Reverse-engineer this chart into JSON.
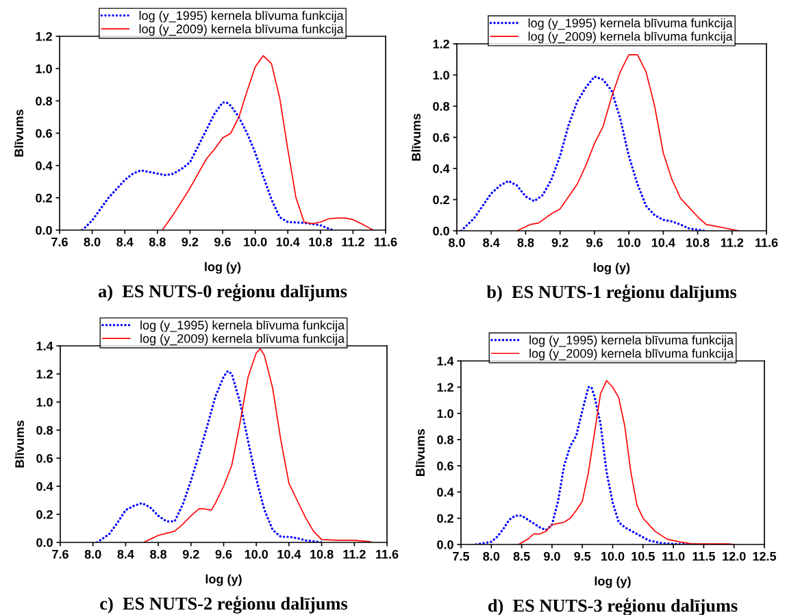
{
  "chart_data": [
    {
      "type": "line",
      "title": "a)  ES NUTS-0 reģionu dalījums",
      "xlabel": "log (y)",
      "ylabel": "Blīvums",
      "xlim": [
        7.6,
        11.6
      ],
      "xticks": [
        {
          "value": 7.6,
          "label": "7.6"
        },
        {
          "value": 8.0,
          "label": "8.0"
        },
        {
          "value": 8.4,
          "label": "8.4"
        },
        {
          "value": 8.8,
          "label": "8.8"
        },
        {
          "value": 9.2,
          "label": "9.2"
        },
        {
          "value": 9.6,
          "label": "9.6"
        },
        {
          "value": 10.0,
          "label": "10.0"
        },
        {
          "value": 10.4,
          "label": "10.4"
        },
        {
          "value": 10.8,
          "label": "10.8"
        },
        {
          "value": 11.2,
          "label": "11.2"
        },
        {
          "value": 11.6,
          "label": "11.6"
        }
      ],
      "ylim": [
        0,
        1.2
      ],
      "yticks": [
        {
          "value": 0,
          "label": "0.0"
        },
        {
          "value": 0.2,
          "label": "0.2"
        },
        {
          "value": 0.4,
          "label": "0.4"
        },
        {
          "value": 0.6,
          "label": "0.6"
        },
        {
          "value": 0.8,
          "label": "0.8"
        },
        {
          "value": 1.0,
          "label": "1.0"
        },
        {
          "value": 1.2,
          "label": "1.2"
        }
      ],
      "grid": false,
      "legend": "top",
      "marker": "none",
      "series": [
        {
          "name": "log (y_1995) kernela blīvuma funkcija",
          "color": "#0000ff",
          "line_style": "dotted",
          "x": [
            7.88,
            8.0,
            8.2,
            8.4,
            8.5,
            8.6,
            8.7,
            8.8,
            8.9,
            9.0,
            9.1,
            9.2,
            9.3,
            9.4,
            9.5,
            9.6,
            9.65,
            9.7,
            9.8,
            9.9,
            10.0,
            10.1,
            10.2,
            10.3,
            10.4,
            10.6,
            10.8,
            10.95
          ],
          "values": [
            0,
            0.06,
            0.2,
            0.31,
            0.35,
            0.37,
            0.36,
            0.35,
            0.34,
            0.35,
            0.38,
            0.42,
            0.52,
            0.62,
            0.72,
            0.79,
            0.79,
            0.77,
            0.7,
            0.6,
            0.48,
            0.33,
            0.19,
            0.08,
            0.05,
            0.045,
            0.03,
            0
          ]
        },
        {
          "name": "log (y_2009) kernela blīvuma funkcija",
          "color": "#ff0000",
          "line_style": "solid",
          "x": [
            8.86,
            9.0,
            9.2,
            9.4,
            9.5,
            9.6,
            9.7,
            9.8,
            9.9,
            10.0,
            10.1,
            10.2,
            10.3,
            10.4,
            10.5,
            10.6,
            10.7,
            10.8,
            10.9,
            11.0,
            11.1,
            11.2,
            11.3,
            11.45
          ],
          "values": [
            0,
            0.1,
            0.26,
            0.44,
            0.5,
            0.57,
            0.6,
            0.7,
            0.86,
            1.01,
            1.08,
            1.03,
            0.82,
            0.5,
            0.2,
            0.05,
            0.04,
            0.05,
            0.07,
            0.075,
            0.075,
            0.065,
            0.04,
            0
          ]
        }
      ]
    },
    {
      "type": "line",
      "title": "b)  ES NUTS-1 reģionu dalījums",
      "xlabel": "log (y)",
      "ylabel": "Blīvums",
      "xlim": [
        8.0,
        11.6
      ],
      "xticks": [
        {
          "value": 8.0,
          "label": "8.0"
        },
        {
          "value": 8.4,
          "label": "8.4"
        },
        {
          "value": 8.8,
          "label": "8.8"
        },
        {
          "value": 9.2,
          "label": "9.2"
        },
        {
          "value": 9.6,
          "label": "9.6"
        },
        {
          "value": 10.0,
          "label": "10.0"
        },
        {
          "value": 10.4,
          "label": "10.4"
        },
        {
          "value": 10.8,
          "label": "10.8"
        },
        {
          "value": 11.2,
          "label": "11.2"
        },
        {
          "value": 11.6,
          "label": "11.6"
        }
      ],
      "ylim": [
        0,
        1.2
      ],
      "yticks": [
        {
          "value": 0,
          "label": "0.0"
        },
        {
          "value": 0.2,
          "label": "0.2"
        },
        {
          "value": 0.4,
          "label": "0.4"
        },
        {
          "value": 0.6,
          "label": "0.6"
        },
        {
          "value": 0.8,
          "label": "0.8"
        },
        {
          "value": 1.0,
          "label": "1.0"
        },
        {
          "value": 1.2,
          "label": "1.2"
        }
      ],
      "grid": false,
      "legend": "top",
      "marker": "none",
      "series": [
        {
          "name": "log (y_1995) kernela blīvuma funkcija",
          "color": "#0000ff",
          "line_style": "dotted",
          "x": [
            8.05,
            8.2,
            8.4,
            8.5,
            8.6,
            8.7,
            8.8,
            8.9,
            9.0,
            9.1,
            9.2,
            9.3,
            9.4,
            9.5,
            9.6,
            9.7,
            9.8,
            9.9,
            10.0,
            10.1,
            10.2,
            10.3,
            10.4,
            10.5,
            10.6,
            10.7,
            10.88
          ],
          "values": [
            0,
            0.08,
            0.24,
            0.29,
            0.32,
            0.29,
            0.22,
            0.19,
            0.23,
            0.33,
            0.48,
            0.68,
            0.83,
            0.92,
            0.99,
            0.97,
            0.9,
            0.72,
            0.48,
            0.3,
            0.16,
            0.1,
            0.07,
            0.06,
            0.04,
            0.015,
            0
          ]
        },
        {
          "name": "log (y_2009) kernela blīvuma funkcija",
          "color": "#ff0000",
          "line_style": "solid",
          "x": [
            8.7,
            8.85,
            8.95,
            9.1,
            9.2,
            9.3,
            9.4,
            9.5,
            9.6,
            9.7,
            9.8,
            9.9,
            10.0,
            10.1,
            10.2,
            10.3,
            10.4,
            10.5,
            10.6,
            10.7,
            10.8,
            10.9,
            11.0,
            11.1,
            11.27
          ],
          "values": [
            0,
            0.04,
            0.05,
            0.11,
            0.14,
            0.22,
            0.3,
            0.42,
            0.56,
            0.67,
            0.86,
            1.02,
            1.13,
            1.13,
            1.02,
            0.8,
            0.5,
            0.33,
            0.21,
            0.15,
            0.09,
            0.04,
            0.03,
            0.02,
            0
          ]
        }
      ]
    },
    {
      "type": "line",
      "title": "c)  ES NUTS-2 reģionu dalījums",
      "xlabel": "log (y)",
      "ylabel": "Blīvums",
      "xlim": [
        7.6,
        11.6
      ],
      "xticks": [
        {
          "value": 7.6,
          "label": "7.6"
        },
        {
          "value": 8.0,
          "label": "8.0"
        },
        {
          "value": 8.4,
          "label": "8.4"
        },
        {
          "value": 8.8,
          "label": "8.8"
        },
        {
          "value": 9.2,
          "label": "9.2"
        },
        {
          "value": 9.6,
          "label": "9.6"
        },
        {
          "value": 10.0,
          "label": "10.0"
        },
        {
          "value": 10.4,
          "label": "10.4"
        },
        {
          "value": 10.8,
          "label": "10.8"
        },
        {
          "value": 11.2,
          "label": "11.2"
        },
        {
          "value": 11.6,
          "label": "11.6"
        }
      ],
      "ylim": [
        0,
        1.4
      ],
      "yticks": [
        {
          "value": 0,
          "label": "0.0"
        },
        {
          "value": 0.2,
          "label": "0.2"
        },
        {
          "value": 0.4,
          "label": "0.4"
        },
        {
          "value": 0.6,
          "label": "0.6"
        },
        {
          "value": 0.8,
          "label": "0.8"
        },
        {
          "value": 1.0,
          "label": "1.0"
        },
        {
          "value": 1.2,
          "label": "1.2"
        },
        {
          "value": 1.4,
          "label": "1.4"
        }
      ],
      "grid": false,
      "legend": "top",
      "marker": "none",
      "series": [
        {
          "name": "log (y_1995) kernela blīvuma funkcija",
          "color": "#0000ff",
          "line_style": "dotted",
          "x": [
            8.05,
            8.2,
            8.3,
            8.4,
            8.5,
            8.6,
            8.7,
            8.8,
            8.9,
            9.0,
            9.1,
            9.2,
            9.3,
            9.4,
            9.5,
            9.6,
            9.65,
            9.7,
            9.8,
            9.9,
            10.0,
            10.1,
            10.2,
            10.3,
            10.4,
            10.5,
            10.6,
            10.8
          ],
          "values": [
            0,
            0.06,
            0.14,
            0.23,
            0.26,
            0.28,
            0.25,
            0.19,
            0.15,
            0.15,
            0.27,
            0.44,
            0.63,
            0.83,
            1.04,
            1.18,
            1.22,
            1.2,
            1.0,
            0.72,
            0.45,
            0.23,
            0.09,
            0.04,
            0.04,
            0.03,
            0.015,
            0
          ]
        },
        {
          "name": "log (y_2009) kernela blīvuma funkcija",
          "color": "#ff0000",
          "line_style": "solid",
          "x": [
            8.62,
            8.8,
            9.0,
            9.1,
            9.2,
            9.3,
            9.35,
            9.45,
            9.5,
            9.6,
            9.7,
            9.8,
            9.9,
            10.0,
            10.05,
            10.1,
            10.2,
            10.3,
            10.4,
            10.5,
            10.6,
            10.7,
            10.8,
            11.0,
            11.2,
            11.4
          ],
          "values": [
            0,
            0.05,
            0.08,
            0.13,
            0.19,
            0.24,
            0.24,
            0.23,
            0.28,
            0.4,
            0.55,
            0.85,
            1.18,
            1.35,
            1.38,
            1.33,
            1.1,
            0.73,
            0.42,
            0.3,
            0.18,
            0.08,
            0.02,
            0.015,
            0.015,
            0.005
          ]
        }
      ]
    },
    {
      "type": "line",
      "title": "d)  ES NUTS-3 reģionu dalījums",
      "xlabel": "log (y)",
      "ylabel": "Blīvums",
      "xlim": [
        7.5,
        12.5
      ],
      "xticks": [
        {
          "value": 7.5,
          "label": "7.5"
        },
        {
          "value": 8.0,
          "label": "8.0"
        },
        {
          "value": 8.5,
          "label": "8.5"
        },
        {
          "value": 9.0,
          "label": "9.0"
        },
        {
          "value": 9.5,
          "label": "9.5"
        },
        {
          "value": 10.0,
          "label": "10.0"
        },
        {
          "value": 10.5,
          "label": "10.5"
        },
        {
          "value": 11.0,
          "label": "11.0"
        },
        {
          "value": 11.5,
          "label": "11.5"
        },
        {
          "value": 12.0,
          "label": "12.0"
        },
        {
          "value": 12.5,
          "label": "12.5"
        }
      ],
      "ylim": [
        0,
        1.4
      ],
      "yticks": [
        {
          "value": 0,
          "label": "0.0"
        },
        {
          "value": 0.2,
          "label": "0.2"
        },
        {
          "value": 0.4,
          "label": "0.4"
        },
        {
          "value": 0.6,
          "label": "0.6"
        },
        {
          "value": 0.8,
          "label": "0.8"
        },
        {
          "value": 1.0,
          "label": "1.0"
        },
        {
          "value": 1.2,
          "label": "1.2"
        },
        {
          "value": 1.4,
          "label": "1.4"
        }
      ],
      "grid": false,
      "legend": "top",
      "marker": "none",
      "series": [
        {
          "name": "log (y_1995) kernela blīvuma funkcija",
          "color": "#0000ff",
          "line_style": "dotted",
          "x": [
            7.75,
            8.0,
            8.1,
            8.2,
            8.3,
            8.4,
            8.5,
            8.6,
            8.7,
            8.8,
            8.9,
            9.0,
            9.1,
            9.2,
            9.3,
            9.4,
            9.5,
            9.6,
            9.65,
            9.7,
            9.8,
            9.9,
            10.0,
            10.1,
            10.2,
            10.4,
            10.6,
            10.8,
            11.0,
            11.4
          ],
          "values": [
            0,
            0.02,
            0.06,
            0.12,
            0.19,
            0.22,
            0.22,
            0.19,
            0.16,
            0.13,
            0.11,
            0.15,
            0.33,
            0.6,
            0.75,
            0.83,
            1.02,
            1.2,
            1.2,
            1.13,
            0.92,
            0.55,
            0.32,
            0.17,
            0.13,
            0.08,
            0.03,
            0.01,
            0.005,
            0
          ]
        },
        {
          "name": "log (y_2009) kernela blīvuma funkcija",
          "color": "#ff0000",
          "line_style": "solid",
          "x": [
            8.45,
            8.6,
            8.7,
            8.8,
            8.9,
            9.0,
            9.1,
            9.2,
            9.3,
            9.4,
            9.5,
            9.6,
            9.7,
            9.8,
            9.9,
            10.0,
            10.1,
            10.2,
            10.3,
            10.4,
            10.5,
            10.7,
            10.9,
            11.1,
            11.3,
            11.8,
            11.9,
            12.0
          ],
          "values": [
            0,
            0.04,
            0.08,
            0.08,
            0.1,
            0.15,
            0.16,
            0.17,
            0.2,
            0.26,
            0.33,
            0.55,
            0.85,
            1.15,
            1.25,
            1.2,
            1.12,
            0.9,
            0.55,
            0.3,
            0.2,
            0.1,
            0.04,
            0.02,
            0.005,
            0.005,
            0.005,
            0
          ]
        }
      ]
    }
  ]
}
